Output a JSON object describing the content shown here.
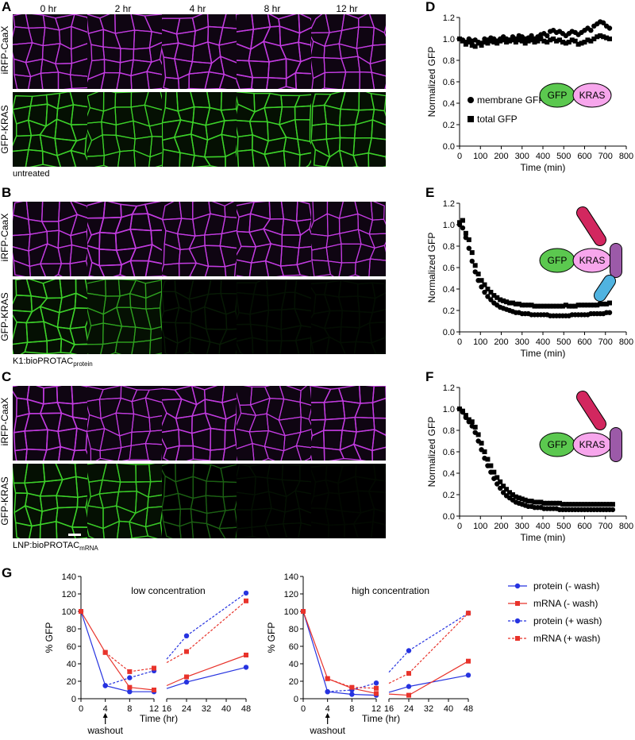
{
  "panels": {
    "A": "A",
    "B": "B",
    "C": "C",
    "D": "D",
    "E": "E",
    "F": "F",
    "G": "G"
  },
  "timepoints": [
    "0 hr",
    "2 hr",
    "4 hr",
    "8 hr",
    "12 hr"
  ],
  "channels": {
    "magenta": "iRFP-CaaX",
    "green": "GFP-KRAS"
  },
  "conditions": [
    {
      "label": "untreated",
      "sub": "",
      "green_levels": [
        1,
        1,
        1,
        1,
        1
      ]
    },
    {
      "label": "K1:bioPROTAC",
      "sub": "protein",
      "green_levels": [
        1,
        0.75,
        0.12,
        0.08,
        0.06
      ]
    },
    {
      "label": "LNP:bioPROTAC",
      "sub": "mRNA",
      "green_levels": [
        1,
        0.95,
        0.45,
        0.08,
        0.03
      ]
    }
  ],
  "colors": {
    "magenta": "#c33be0",
    "green": "#3cd22a",
    "gfp_fill": "#5bc84f",
    "kras_fill": "#f7a6ec",
    "red_part": "#d2275f",
    "purple_part": "#9c5aa8",
    "blue_part": "#50b3e0",
    "protein": "#2633e0",
    "mrna": "#e8332b"
  },
  "diagrams": {
    "gfp": "GFP",
    "kras": "KRAS"
  },
  "chart_data": [
    {
      "type": "scatter",
      "panel": "D",
      "xlabel": "Time (min)",
      "ylabel": "Normalized GFP",
      "xlim": [
        0,
        800
      ],
      "ylim": [
        0,
        1.2
      ],
      "xticks": [
        0,
        100,
        200,
        300,
        400,
        500,
        600,
        700,
        800
      ],
      "yticks": [
        0.0,
        0.2,
        0.4,
        0.6,
        0.8,
        1.0,
        1.2
      ],
      "legend": [
        "membrane GFP",
        "total GFP"
      ],
      "series": [
        {
          "name": "membrane GFP",
          "marker": "circle",
          "x": [
            0,
            15,
            30,
            45,
            60,
            75,
            90,
            105,
            120,
            135,
            150,
            165,
            180,
            195,
            210,
            225,
            240,
            255,
            270,
            285,
            300,
            315,
            330,
            345,
            360,
            375,
            390,
            405,
            420,
            435,
            450,
            465,
            480,
            495,
            510,
            525,
            540,
            555,
            570,
            585,
            600,
            615,
            630,
            645,
            660,
            675,
            690,
            705,
            720
          ],
          "y": [
            1.0,
            0.99,
            0.97,
            1.0,
            0.98,
            0.99,
            0.97,
            0.96,
            1.0,
            0.99,
            1.01,
            1.0,
            0.98,
            1.0,
            1.02,
            1.0,
            0.99,
            1.02,
            1.0,
            1.03,
            1.02,
            1.0,
            1.01,
            1.03,
            1.0,
            1.02,
            1.04,
            1.05,
            1.03,
            1.07,
            1.08,
            1.06,
            1.07,
            1.05,
            1.03,
            1.05,
            1.07,
            1.06,
            1.04,
            1.06,
            1.08,
            1.1,
            1.08,
            1.12,
            1.14,
            1.16,
            1.15,
            1.12,
            1.1
          ]
        },
        {
          "name": "total GFP",
          "marker": "square",
          "x": [
            0,
            15,
            30,
            45,
            60,
            75,
            90,
            105,
            120,
            135,
            150,
            165,
            180,
            195,
            210,
            225,
            240,
            255,
            270,
            285,
            300,
            315,
            330,
            345,
            360,
            375,
            390,
            405,
            420,
            435,
            450,
            465,
            480,
            495,
            510,
            525,
            540,
            555,
            570,
            585,
            600,
            615,
            630,
            645,
            660,
            675,
            690,
            705,
            720
          ],
          "y": [
            1.0,
            0.98,
            0.95,
            0.97,
            0.94,
            0.93,
            0.96,
            0.94,
            0.97,
            0.96,
            0.98,
            0.97,
            0.96,
            0.98,
            0.99,
            0.97,
            0.98,
            0.99,
            0.97,
            0.99,
            0.98,
            0.96,
            0.98,
            0.99,
            0.97,
            0.98,
            1.0,
            0.98,
            0.97,
            0.99,
            1.0,
            0.98,
            0.99,
            0.97,
            0.96,
            0.97,
            0.99,
            0.98,
            0.95,
            0.96,
            0.97,
            0.99,
            0.98,
            1.0,
            1.02,
            1.03,
            1.02,
            1.01,
            1.0
          ]
        }
      ]
    },
    {
      "type": "scatter",
      "panel": "E",
      "xlabel": "Time (min)",
      "ylabel": "Normalized GFP",
      "xlim": [
        0,
        800
      ],
      "ylim": [
        0,
        1.2
      ],
      "xticks": [
        0,
        100,
        200,
        300,
        400,
        500,
        600,
        700,
        800
      ],
      "yticks": [
        0.0,
        0.2,
        0.4,
        0.6,
        0.8,
        1.0,
        1.2
      ],
      "series": [
        {
          "name": "membrane GFP",
          "marker": "circle",
          "x": [
            0,
            15,
            30,
            45,
            60,
            75,
            90,
            105,
            120,
            135,
            150,
            165,
            180,
            195,
            210,
            225,
            240,
            255,
            270,
            285,
            300,
            315,
            330,
            345,
            360,
            375,
            390,
            405,
            420,
            435,
            450,
            465,
            480,
            495,
            510,
            525,
            540,
            555,
            570,
            585,
            600,
            615,
            630,
            645,
            660,
            675,
            690,
            705,
            720
          ],
          "y": [
            1.0,
            0.97,
            0.88,
            0.78,
            0.66,
            0.56,
            0.48,
            0.42,
            0.37,
            0.33,
            0.3,
            0.27,
            0.25,
            0.23,
            0.22,
            0.21,
            0.2,
            0.19,
            0.18,
            0.18,
            0.17,
            0.17,
            0.17,
            0.16,
            0.16,
            0.16,
            0.16,
            0.16,
            0.16,
            0.15,
            0.15,
            0.15,
            0.15,
            0.15,
            0.15,
            0.15,
            0.16,
            0.16,
            0.16,
            0.16,
            0.16,
            0.16,
            0.17,
            0.17,
            0.17,
            0.17,
            0.17,
            0.18,
            0.18
          ]
        },
        {
          "name": "total GFP",
          "marker": "square",
          "x": [
            0,
            15,
            30,
            45,
            60,
            75,
            90,
            105,
            120,
            135,
            150,
            165,
            180,
            195,
            210,
            225,
            240,
            255,
            270,
            285,
            300,
            315,
            330,
            345,
            360,
            375,
            390,
            405,
            420,
            435,
            450,
            465,
            480,
            495,
            510,
            525,
            540,
            555,
            570,
            585,
            600,
            615,
            630,
            645,
            660,
            675,
            690,
            705,
            720
          ],
          "y": [
            1.02,
            1.04,
            0.92,
            0.86,
            0.74,
            0.62,
            0.54,
            0.48,
            0.44,
            0.4,
            0.37,
            0.34,
            0.32,
            0.3,
            0.29,
            0.28,
            0.27,
            0.27,
            0.26,
            0.26,
            0.25,
            0.25,
            0.25,
            0.25,
            0.24,
            0.24,
            0.24,
            0.24,
            0.24,
            0.24,
            0.24,
            0.24,
            0.24,
            0.24,
            0.25,
            0.24,
            0.24,
            0.24,
            0.25,
            0.25,
            0.25,
            0.25,
            0.25,
            0.25,
            0.25,
            0.26,
            0.26,
            0.26,
            0.27
          ]
        }
      ]
    },
    {
      "type": "scatter",
      "panel": "F",
      "xlabel": "Time (min)",
      "ylabel": "Normalized GFP",
      "xlim": [
        0,
        800
      ],
      "ylim": [
        0,
        1.2
      ],
      "xticks": [
        0,
        100,
        200,
        300,
        400,
        500,
        600,
        700,
        800
      ],
      "yticks": [
        0.0,
        0.2,
        0.4,
        0.6,
        0.8,
        1.0,
        1.2
      ],
      "series": [
        {
          "name": "membrane GFP",
          "marker": "circle",
          "x": [
            0,
            15,
            30,
            45,
            60,
            75,
            90,
            105,
            120,
            135,
            150,
            165,
            180,
            195,
            210,
            225,
            240,
            255,
            270,
            285,
            300,
            315,
            330,
            345,
            360,
            375,
            390,
            405,
            420,
            435,
            450,
            465,
            480,
            495,
            510,
            525,
            540,
            555,
            570,
            585,
            600,
            615,
            630,
            645,
            660,
            675,
            690,
            705,
            720,
            735
          ],
          "y": [
            1.0,
            0.97,
            0.92,
            0.88,
            0.84,
            0.78,
            0.7,
            0.62,
            0.54,
            0.47,
            0.41,
            0.35,
            0.3,
            0.26,
            0.22,
            0.19,
            0.17,
            0.15,
            0.13,
            0.12,
            0.11,
            0.1,
            0.09,
            0.09,
            0.08,
            0.08,
            0.08,
            0.07,
            0.07,
            0.07,
            0.07,
            0.07,
            0.06,
            0.06,
            0.06,
            0.06,
            0.06,
            0.06,
            0.06,
            0.06,
            0.06,
            0.06,
            0.06,
            0.06,
            0.06,
            0.06,
            0.06,
            0.06,
            0.06,
            0.06
          ]
        },
        {
          "name": "total GFP",
          "marker": "square",
          "x": [
            0,
            15,
            30,
            45,
            60,
            75,
            90,
            105,
            120,
            135,
            150,
            165,
            180,
            195,
            210,
            225,
            240,
            255,
            270,
            285,
            300,
            315,
            330,
            345,
            360,
            375,
            390,
            405,
            420,
            435,
            450,
            465,
            480,
            495,
            510,
            525,
            540,
            555,
            570,
            585,
            600,
            615,
            630,
            645,
            660,
            675,
            690,
            705,
            720,
            735
          ],
          "y": [
            1.0,
            0.98,
            0.94,
            0.9,
            0.88,
            0.83,
            0.76,
            0.68,
            0.6,
            0.53,
            0.47,
            0.41,
            0.36,
            0.32,
            0.28,
            0.25,
            0.22,
            0.2,
            0.18,
            0.17,
            0.16,
            0.15,
            0.14,
            0.14,
            0.13,
            0.13,
            0.13,
            0.12,
            0.12,
            0.12,
            0.12,
            0.12,
            0.12,
            0.11,
            0.11,
            0.11,
            0.11,
            0.11,
            0.11,
            0.11,
            0.11,
            0.11,
            0.11,
            0.11,
            0.11,
            0.11,
            0.11,
            0.11,
            0.11,
            0.11
          ]
        }
      ]
    },
    {
      "type": "line",
      "panel": "G-low",
      "title": "low concentration",
      "xlabel": "Time (hr)",
      "ylabel": "% GFP",
      "ylim": [
        0,
        140
      ],
      "yticks": [
        0,
        20,
        40,
        60,
        80,
        100,
        120,
        140
      ],
      "xticks_left": [
        0,
        4,
        8,
        12
      ],
      "xticks_right": [
        16,
        24,
        32,
        40,
        48
      ],
      "annotation": "washout",
      "series": [
        {
          "name": "protein (- wash)",
          "style": "solid",
          "color": "protein",
          "marker": "circle",
          "x": [
            0,
            4,
            8,
            12,
            24,
            48
          ],
          "y": [
            100,
            15,
            8,
            8,
            19,
            36
          ]
        },
        {
          "name": "mRNA (- wash)",
          "style": "solid",
          "color": "mrna",
          "marker": "square",
          "x": [
            0,
            4,
            8,
            12,
            24,
            48
          ],
          "y": [
            100,
            53,
            13,
            10,
            25,
            50
          ]
        },
        {
          "name": "protein (+ wash)",
          "style": "dashed",
          "color": "protein",
          "marker": "circle",
          "x": [
            4,
            8,
            12,
            24,
            48
          ],
          "y": [
            15,
            24,
            32,
            72,
            121
          ]
        },
        {
          "name": "mRNA (+ wash)",
          "style": "dashed",
          "color": "mrna",
          "marker": "square",
          "x": [
            4,
            8,
            12,
            24,
            48
          ],
          "y": [
            53,
            31,
            35,
            54,
            112
          ]
        }
      ]
    },
    {
      "type": "line",
      "panel": "G-high",
      "title": "high concentration",
      "xlabel": "Time (hr)",
      "ylabel": "% GFP",
      "ylim": [
        0,
        140
      ],
      "yticks": [
        0,
        20,
        40,
        60,
        80,
        100,
        120,
        140
      ],
      "xticks_left": [
        0,
        4,
        8,
        12
      ],
      "xticks_right": [
        16,
        24,
        32,
        40,
        48
      ],
      "annotation": "washout",
      "series": [
        {
          "name": "protein (- wash)",
          "style": "solid",
          "color": "protein",
          "marker": "circle",
          "x": [
            0,
            4,
            8,
            12,
            24,
            48
          ],
          "y": [
            100,
            8,
            5,
            4,
            14,
            27
          ]
        },
        {
          "name": "mRNA (- wash)",
          "style": "solid",
          "color": "mrna",
          "marker": "square",
          "x": [
            0,
            4,
            8,
            12,
            24,
            48
          ],
          "y": [
            100,
            23,
            12,
            6,
            4,
            43
          ]
        },
        {
          "name": "protein (+ wash)",
          "style": "dashed",
          "color": "protein",
          "marker": "circle",
          "x": [
            4,
            8,
            12,
            24,
            48
          ],
          "y": [
            8,
            10,
            18,
            55,
            98
          ]
        },
        {
          "name": "mRNA (+ wash)",
          "style": "dashed",
          "color": "mrna",
          "marker": "square",
          "x": [
            4,
            8,
            12,
            24,
            48
          ],
          "y": [
            23,
            13,
            12,
            29,
            98
          ]
        }
      ]
    }
  ],
  "legend_G": [
    "protein (- wash)",
    "mRNA (- wash)",
    "protein (+ wash)",
    "mRNA (+ wash)"
  ]
}
